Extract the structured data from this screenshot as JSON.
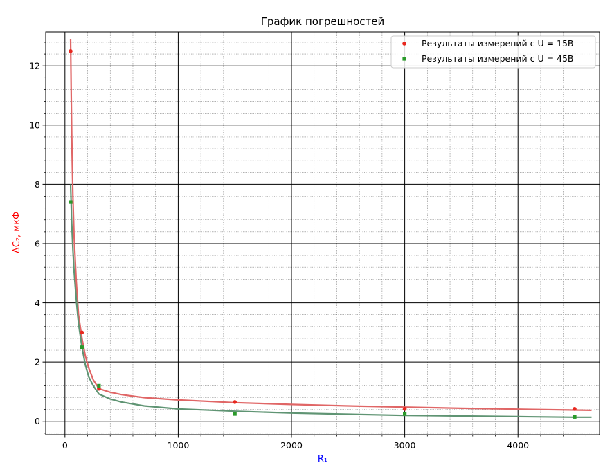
{
  "chart_data": {
    "type": "scatter",
    "title": "График погрешностей",
    "xlabel": "R₁",
    "ylabel": "ΔC₂, мкФ",
    "xlabel_color": "#0000ff",
    "ylabel_color": "#ff0000",
    "xlim": [
      -170,
      4720
    ],
    "ylim": [
      -0.45,
      13.15
    ],
    "x_ticks": [
      0,
      1000,
      2000,
      3000,
      4000
    ],
    "y_ticks": [
      0,
      2,
      4,
      6,
      8,
      10,
      12
    ],
    "x_tick_labels": [
      "0",
      "1000",
      "2000",
      "3000",
      "4000"
    ],
    "y_tick_labels": [
      "0",
      "2",
      "4",
      "6",
      "8",
      "10",
      "12"
    ],
    "grid": {
      "major": true,
      "minor": true
    },
    "legend_position": "top-right",
    "series": [
      {
        "name": "Результаты измерений с U = 15В",
        "marker": "circle",
        "color": "#e8281f",
        "fit_color": "#e06666",
        "points": [
          {
            "x": 50,
            "y": 12.5
          },
          {
            "x": 150,
            "y": 3.0
          },
          {
            "x": 300,
            "y": 1.1
          },
          {
            "x": 1500,
            "y": 0.65
          },
          {
            "x": 3000,
            "y": 0.42
          },
          {
            "x": 4500,
            "y": 0.42
          }
        ],
        "fit": [
          {
            "x": 50,
            "y": 12.9
          },
          {
            "x": 55,
            "y": 11.2
          },
          {
            "x": 60,
            "y": 9.7
          },
          {
            "x": 70,
            "y": 7.6
          },
          {
            "x": 80,
            "y": 6.3
          },
          {
            "x": 100,
            "y": 4.7
          },
          {
            "x": 120,
            "y": 3.6
          },
          {
            "x": 150,
            "y": 2.8
          },
          {
            "x": 180,
            "y": 2.2
          },
          {
            "x": 210,
            "y": 1.8
          },
          {
            "x": 250,
            "y": 1.4
          },
          {
            "x": 300,
            "y": 1.1
          },
          {
            "x": 400,
            "y": 0.98
          },
          {
            "x": 500,
            "y": 0.9
          },
          {
            "x": 700,
            "y": 0.8
          },
          {
            "x": 1000,
            "y": 0.72
          },
          {
            "x": 1500,
            "y": 0.63
          },
          {
            "x": 2000,
            "y": 0.57
          },
          {
            "x": 2500,
            "y": 0.52
          },
          {
            "x": 3000,
            "y": 0.48
          },
          {
            "x": 3500,
            "y": 0.44
          },
          {
            "x": 4000,
            "y": 0.41
          },
          {
            "x": 4500,
            "y": 0.38
          },
          {
            "x": 4650,
            "y": 0.37
          }
        ]
      },
      {
        "name": "Результаты измерений с U = 45В",
        "marker": "square",
        "color": "#2a9a2a",
        "fit_color": "#5f9473",
        "points": [
          {
            "x": 50,
            "y": 7.4
          },
          {
            "x": 150,
            "y": 2.5
          },
          {
            "x": 300,
            "y": 1.2
          },
          {
            "x": 1500,
            "y": 0.25
          },
          {
            "x": 3000,
            "y": 0.25
          },
          {
            "x": 4500,
            "y": 0.15
          }
        ],
        "fit": [
          {
            "x": 50,
            "y": 8.0
          },
          {
            "x": 60,
            "y": 6.7
          },
          {
            "x": 70,
            "y": 5.8
          },
          {
            "x": 80,
            "y": 5.1
          },
          {
            "x": 100,
            "y": 4.1
          },
          {
            "x": 120,
            "y": 3.3
          },
          {
            "x": 150,
            "y": 2.5
          },
          {
            "x": 180,
            "y": 1.9
          },
          {
            "x": 210,
            "y": 1.5
          },
          {
            "x": 250,
            "y": 1.2
          },
          {
            "x": 300,
            "y": 0.92
          },
          {
            "x": 400,
            "y": 0.75
          },
          {
            "x": 500,
            "y": 0.65
          },
          {
            "x": 700,
            "y": 0.52
          },
          {
            "x": 1000,
            "y": 0.42
          },
          {
            "x": 1500,
            "y": 0.34
          },
          {
            "x": 2000,
            "y": 0.28
          },
          {
            "x": 2500,
            "y": 0.24
          },
          {
            "x": 3000,
            "y": 0.2
          },
          {
            "x": 3500,
            "y": 0.18
          },
          {
            "x": 4000,
            "y": 0.16
          },
          {
            "x": 4500,
            "y": 0.14
          },
          {
            "x": 4650,
            "y": 0.14
          }
        ]
      }
    ]
  }
}
